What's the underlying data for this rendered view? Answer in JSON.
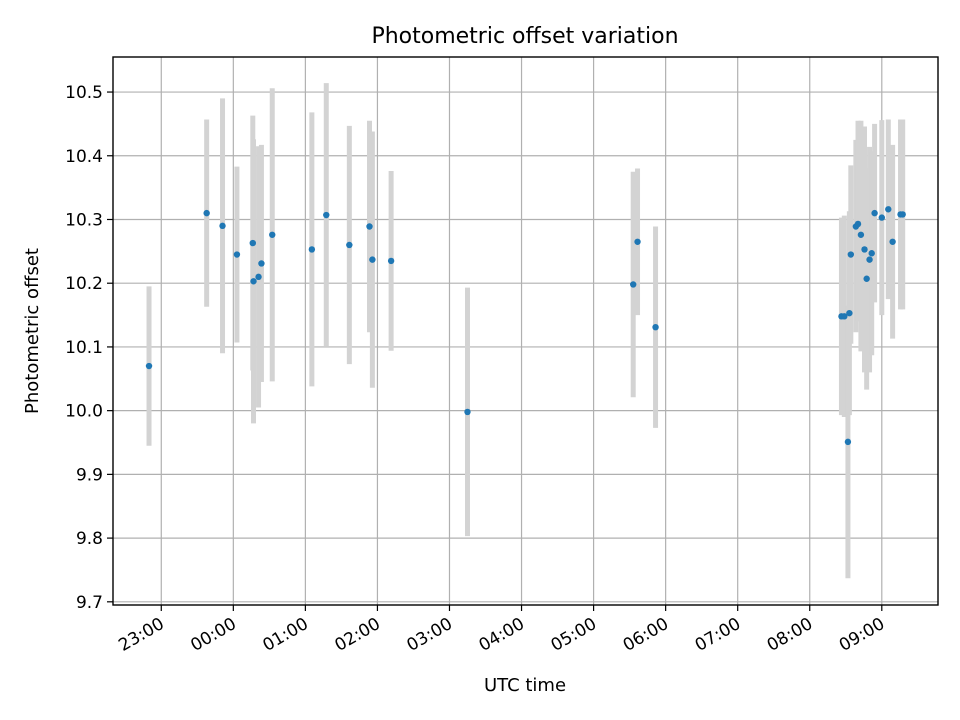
{
  "chart_data": {
    "type": "scatter",
    "title": "Photometric offset variation",
    "xlabel": "UTC time",
    "ylabel": "Photometric offset",
    "x_unit": "hours relative to 00:00 UTC",
    "xlim": [
      -1.67,
      9.78
    ],
    "ylim": [
      9.695,
      10.555
    ],
    "xticks": [
      {
        "value": -1,
        "label": "23:00"
      },
      {
        "value": 0,
        "label": "00:00"
      },
      {
        "value": 1,
        "label": "01:00"
      },
      {
        "value": 2,
        "label": "02:00"
      },
      {
        "value": 3,
        "label": "03:00"
      },
      {
        "value": 4,
        "label": "04:00"
      },
      {
        "value": 5,
        "label": "05:00"
      },
      {
        "value": 6,
        "label": "06:00"
      },
      {
        "value": 7,
        "label": "07:00"
      },
      {
        "value": 8,
        "label": "08:00"
      },
      {
        "value": 9,
        "label": "09:00"
      }
    ],
    "yticks": [
      {
        "value": 9.7,
        "label": "9.7"
      },
      {
        "value": 9.8,
        "label": "9.8"
      },
      {
        "value": 9.9,
        "label": "9.9"
      },
      {
        "value": 10.0,
        "label": "10.0"
      },
      {
        "value": 10.1,
        "label": "10.1"
      },
      {
        "value": 10.2,
        "label": "10.2"
      },
      {
        "value": 10.3,
        "label": "10.3"
      },
      {
        "value": 10.4,
        "label": "10.4"
      },
      {
        "value": 10.5,
        "label": "10.5"
      }
    ],
    "grid": true,
    "point_color": "#1f77b4",
    "errorbar_color": "#d3d3d3",
    "points": [
      {
        "x": -1.17,
        "y": 10.07,
        "lo": 9.945,
        "hi": 10.195
      },
      {
        "x": -0.37,
        "y": 10.31,
        "lo": 10.163,
        "hi": 10.457
      },
      {
        "x": -0.15,
        "y": 10.29,
        "lo": 10.09,
        "hi": 10.49
      },
      {
        "x": 0.05,
        "y": 10.245,
        "lo": 10.107,
        "hi": 10.383
      },
      {
        "x": 0.27,
        "y": 10.263,
        "lo": 10.063,
        "hi": 10.463
      },
      {
        "x": 0.28,
        "y": 10.203,
        "lo": 9.98,
        "hi": 10.426
      },
      {
        "x": 0.35,
        "y": 10.21,
        "lo": 10.005,
        "hi": 10.415
      },
      {
        "x": 0.39,
        "y": 10.231,
        "lo": 10.045,
        "hi": 10.417
      },
      {
        "x": 0.54,
        "y": 10.276,
        "lo": 10.046,
        "hi": 10.506
      },
      {
        "x": 1.09,
        "y": 10.253,
        "lo": 10.038,
        "hi": 10.468
      },
      {
        "x": 1.29,
        "y": 10.307,
        "lo": 10.1,
        "hi": 10.514
      },
      {
        "x": 1.61,
        "y": 10.26,
        "lo": 10.073,
        "hi": 10.447
      },
      {
        "x": 1.89,
        "y": 10.289,
        "lo": 10.123,
        "hi": 10.455
      },
      {
        "x": 1.93,
        "y": 10.237,
        "lo": 10.036,
        "hi": 10.438
      },
      {
        "x": 2.19,
        "y": 10.235,
        "lo": 10.094,
        "hi": 10.376
      },
      {
        "x": 3.25,
        "y": 9.998,
        "lo": 9.803,
        "hi": 10.193
      },
      {
        "x": 5.55,
        "y": 10.198,
        "lo": 10.021,
        "hi": 10.375
      },
      {
        "x": 5.61,
        "y": 10.265,
        "lo": 10.15,
        "hi": 10.38
      },
      {
        "x": 5.86,
        "y": 10.131,
        "lo": 9.973,
        "hi": 10.289
      },
      {
        "x": 8.44,
        "y": 10.148,
        "lo": 9.993,
        "hi": 10.303
      },
      {
        "x": 8.48,
        "y": 10.148,
        "lo": 9.99,
        "hi": 10.306
      },
      {
        "x": 8.53,
        "y": 9.951,
        "lo": 9.737,
        "hi": 10.165
      },
      {
        "x": 8.55,
        "y": 10.153,
        "lo": 9.993,
        "hi": 10.313
      },
      {
        "x": 8.57,
        "y": 10.245,
        "lo": 10.105,
        "hi": 10.385
      },
      {
        "x": 8.64,
        "y": 10.289,
        "lo": 10.123,
        "hi": 10.425
      },
      {
        "x": 8.67,
        "y": 10.293,
        "lo": 10.14,
        "hi": 10.455
      },
      {
        "x": 8.71,
        "y": 10.276,
        "lo": 10.093,
        "hi": 10.455
      },
      {
        "x": 8.76,
        "y": 10.253,
        "lo": 10.06,
        "hi": 10.446
      },
      {
        "x": 8.79,
        "y": 10.207,
        "lo": 10.033,
        "hi": 10.381
      },
      {
        "x": 8.83,
        "y": 10.237,
        "lo": 10.06,
        "hi": 10.414
      },
      {
        "x": 8.86,
        "y": 10.247,
        "lo": 10.087,
        "hi": 10.407
      },
      {
        "x": 8.9,
        "y": 10.31,
        "lo": 10.17,
        "hi": 10.45
      },
      {
        "x": 9.0,
        "y": 10.303,
        "lo": 10.15,
        "hi": 10.456
      },
      {
        "x": 9.09,
        "y": 10.316,
        "lo": 10.175,
        "hi": 10.457
      },
      {
        "x": 9.15,
        "y": 10.265,
        "lo": 10.113,
        "hi": 10.417
      },
      {
        "x": 9.26,
        "y": 10.308,
        "lo": 10.159,
        "hi": 10.457
      },
      {
        "x": 9.29,
        "y": 10.308,
        "lo": 10.159,
        "hi": 10.457
      }
    ]
  }
}
